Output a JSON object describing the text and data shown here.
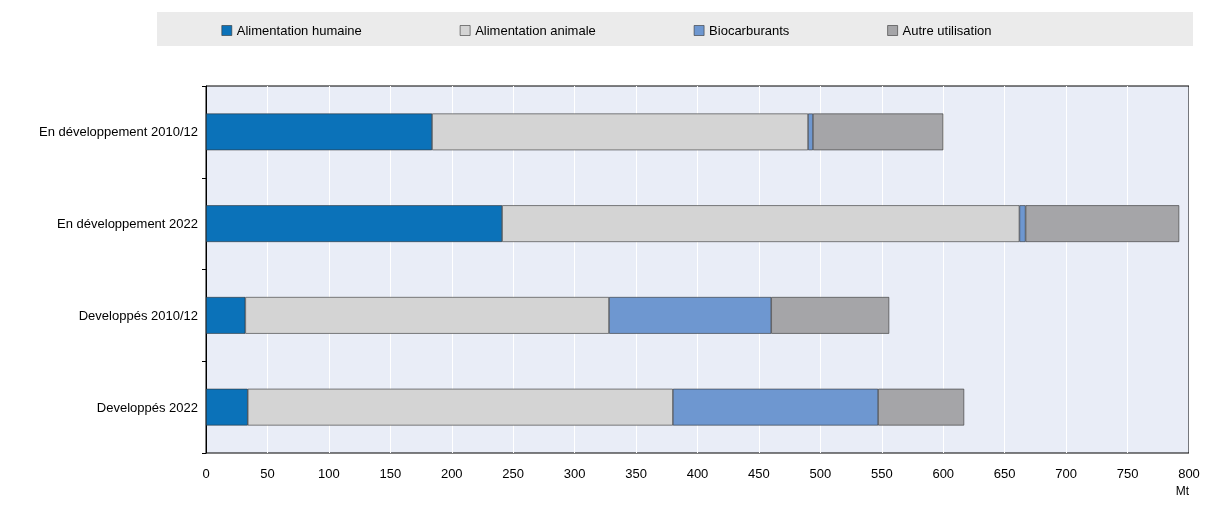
{
  "chart_data": {
    "type": "bar",
    "orientation": "horizontal",
    "stacked": true,
    "categories": [
      "En développement 2010/12",
      "En développement 2022",
      "Developpés 2010/12",
      "Developpés 2022"
    ],
    "series": [
      {
        "name": "Alimentation humaine",
        "color": "#0b72b9",
        "values": [
          184,
          241,
          32,
          34
        ]
      },
      {
        "name": "Alimentation animale",
        "color": "#d4d4d4",
        "values": [
          306,
          421,
          296,
          346
        ]
      },
      {
        "name": "Biocarburants",
        "color": "#6e97d0",
        "values": [
          4,
          5,
          132,
          167
        ]
      },
      {
        "name": "Autre utilisation",
        "color": "#a5a5a8",
        "values": [
          106,
          125,
          96,
          70
        ]
      }
    ],
    "xlabel": "Mt",
    "xlim": [
      0,
      800
    ],
    "xticks": [
      0,
      50,
      100,
      150,
      200,
      250,
      300,
      350,
      400,
      450,
      500,
      550,
      600,
      650,
      700,
      750,
      800
    ],
    "grid": "x",
    "legend": "top"
  }
}
